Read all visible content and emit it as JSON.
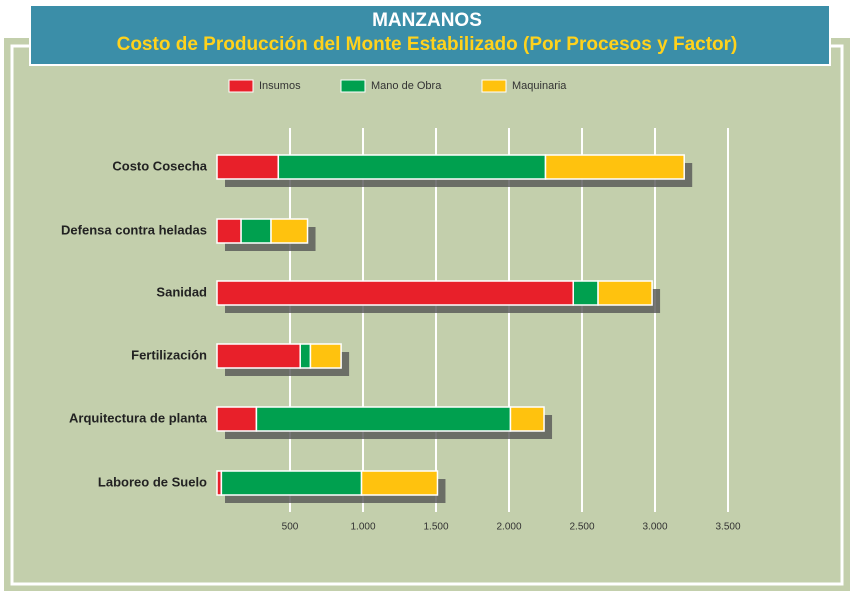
{
  "chart_data": {
    "type": "stacked-barh",
    "title": "MANZANOS",
    "subtitle": "Costo de Producción del Monte Estabilizado (Por Procesos y Factor)",
    "categories": [
      "Costo Cosecha",
      "Defensa contra heladas",
      "Sanidad",
      "Fertilización",
      "Arquitectura de planta",
      "Laboreo de Suelo"
    ],
    "series": [
      {
        "name": "Insumos",
        "color": "#e8202a",
        "values": [
          420,
          165,
          2440,
          570,
          270,
          30
        ]
      },
      {
        "name": "Mano de Obra",
        "color": "#00a04f",
        "values": [
          1830,
          205,
          170,
          70,
          1740,
          960
        ]
      },
      {
        "name": "Maquinaria",
        "color": "#ffc20e",
        "values": [
          950,
          250,
          370,
          210,
          230,
          520
        ]
      }
    ],
    "xlim": [
      0,
      3500
    ],
    "xticks": [
      500,
      {
        "value": 1000,
        "label": "1.000"
      },
      {
        "value": 1500,
        "label": "1.500"
      },
      {
        "value": 2000,
        "label": "2.000"
      },
      {
        "value": 2500,
        "label": "2.500"
      },
      {
        "value": 3000,
        "label": "3.000"
      },
      {
        "value": 3500,
        "label": "3.500"
      }
    ],
    "grid": true
  }
}
